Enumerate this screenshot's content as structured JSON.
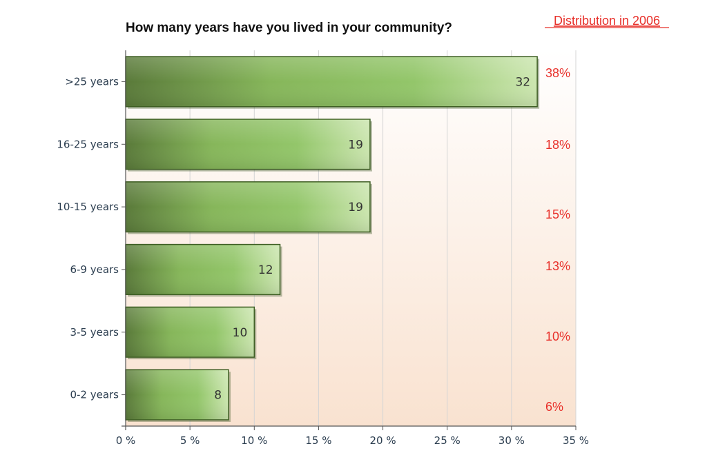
{
  "chart_data": {
    "type": "bar",
    "orientation": "horizontal",
    "title": "How many years have you lived in your community?",
    "categories": [
      ">25 years",
      "16-25 years",
      "10-15 years",
      "6-9 years",
      "3-5 years",
      "0-2 years"
    ],
    "values": [
      32,
      19,
      19,
      12,
      10,
      8
    ],
    "value_labels": [
      "32",
      "19",
      "19",
      "12",
      "10",
      "8"
    ],
    "xlim": [
      0,
      35
    ],
    "x_ticks": [
      0,
      5,
      10,
      15,
      20,
      25,
      30,
      35
    ],
    "x_tick_labels": [
      "0 %",
      "5 %",
      "10 %",
      "15 %",
      "20 %",
      "25 %",
      "30 %",
      "35 %"
    ],
    "grid": "vertical",
    "comparison": {
      "label": "Distribution in 2006",
      "values": [
        "38%",
        "18%",
        "15%",
        "13%",
        "10%",
        "6%"
      ]
    }
  },
  "colors": {
    "bar_dark": "#5a7a3a",
    "bar_mid": "#8cc060",
    "bar_light": "#cce6b0",
    "bar_border": "#3e5e24",
    "comparison": "#e8302a",
    "axis_text": "#2b3d4f",
    "grid": "#d4d4d4",
    "plot_bg_top": "#ffffff",
    "plot_bg_bottom": "#f9e2d0"
  }
}
